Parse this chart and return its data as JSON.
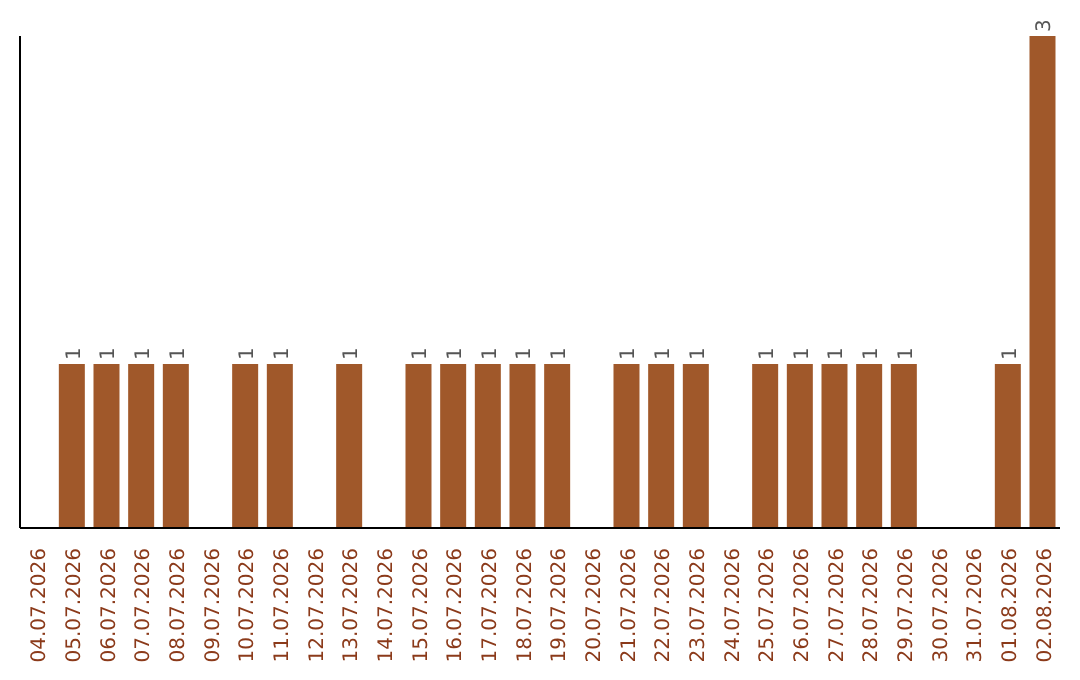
{
  "chart_data": {
    "type": "bar",
    "categories": [
      "04.07.2026",
      "05.07.2026",
      "06.07.2026",
      "07.07.2026",
      "08.07.2026",
      "09.07.2026",
      "10.07.2026",
      "11.07.2026",
      "12.07.2026",
      "13.07.2026",
      "14.07.2026",
      "15.07.2026",
      "16.07.2026",
      "17.07.2026",
      "18.07.2026",
      "19.07.2026",
      "20.07.2026",
      "21.07.2026",
      "22.07.2026",
      "23.07.2026",
      "24.07.2026",
      "25.07.2026",
      "26.07.2026",
      "27.07.2026",
      "28.07.2026",
      "29.07.2026",
      "30.07.2026",
      "31.07.2026",
      "01.08.2026",
      "02.08.2026"
    ],
    "values": [
      0,
      1,
      1,
      1,
      1,
      0,
      1,
      1,
      0,
      1,
      0,
      1,
      1,
      1,
      1,
      1,
      0,
      1,
      1,
      1,
      0,
      1,
      1,
      1,
      1,
      1,
      0,
      0,
      1,
      3
    ],
    "value_labels": [
      null,
      "1",
      "1",
      "1",
      "1",
      null,
      "1",
      "1",
      null,
      "1",
      null,
      "1",
      "1",
      "1",
      "1",
      "1",
      null,
      "1",
      "1",
      "1",
      null,
      "1",
      "1",
      "1",
      "1",
      "1",
      null,
      null,
      "1",
      "3"
    ],
    "color": "#a0582a",
    "ylim": [
      0,
      3
    ],
    "tick_labels": "x"
  }
}
